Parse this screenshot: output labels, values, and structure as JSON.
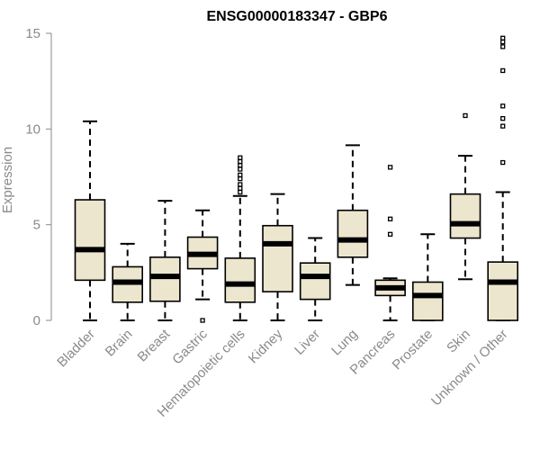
{
  "chart_data": {
    "type": "boxplot",
    "title": "ENSG00000183347 - GBP6",
    "ylabel": "Expression",
    "xlabel": "",
    "ylim": [
      0,
      15
    ],
    "yticks": [
      0,
      5,
      10,
      15
    ],
    "grid": false,
    "colors": {
      "box_fill": "#ede6cf",
      "stroke": "#000000",
      "axis_text": "#8a8a8a"
    },
    "categories": [
      "Bladder",
      "Brain",
      "Breast",
      "Gastric",
      "Hematopoietic cells",
      "Kidney",
      "Liver",
      "Lung",
      "Pancreas",
      "Prostate",
      "Skin",
      "Unknown / Other"
    ],
    "boxes": [
      {
        "whisker_low": 0.0,
        "q1": 2.1,
        "median": 3.7,
        "q3": 6.3,
        "whisker_high": 10.4,
        "outliers": []
      },
      {
        "whisker_low": 0.0,
        "q1": 0.95,
        "median": 2.0,
        "q3": 2.8,
        "whisker_high": 4.0,
        "outliers": []
      },
      {
        "whisker_low": 0.0,
        "q1": 1.0,
        "median": 2.3,
        "q3": 3.3,
        "whisker_high": 6.25,
        "outliers": []
      },
      {
        "whisker_low": 1.1,
        "q1": 2.7,
        "median": 3.45,
        "q3": 4.35,
        "whisker_high": 5.75,
        "outliers": [
          0.0
        ]
      },
      {
        "whisker_low": 0.0,
        "q1": 0.95,
        "median": 1.9,
        "q3": 3.25,
        "whisker_high": 6.5,
        "outliers": [
          6.7,
          6.9,
          7.1,
          7.4,
          7.6,
          7.9,
          8.1,
          8.3,
          8.5
        ]
      },
      {
        "whisker_low": 0.0,
        "q1": 1.5,
        "median": 4.0,
        "q3": 4.95,
        "whisker_high": 6.6,
        "outliers": []
      },
      {
        "whisker_low": 0.0,
        "q1": 1.1,
        "median": 2.3,
        "q3": 3.0,
        "whisker_high": 4.3,
        "outliers": []
      },
      {
        "whisker_low": 1.85,
        "q1": 3.3,
        "median": 4.2,
        "q3": 5.75,
        "whisker_high": 9.15,
        "outliers": []
      },
      {
        "whisker_low": 0.0,
        "q1": 1.3,
        "median": 1.7,
        "q3": 2.1,
        "whisker_high": 2.2,
        "outliers": [
          4.5,
          5.3,
          8.0
        ]
      },
      {
        "whisker_low": 0.0,
        "q1": 0.0,
        "median": 1.3,
        "q3": 2.0,
        "whisker_high": 4.5,
        "outliers": []
      },
      {
        "whisker_low": 2.15,
        "q1": 4.3,
        "median": 5.05,
        "q3": 6.6,
        "whisker_high": 8.6,
        "outliers": [
          10.7
        ]
      },
      {
        "whisker_low": 0.0,
        "q1": 0.0,
        "median": 2.0,
        "q3": 3.05,
        "whisker_high": 6.7,
        "outliers": [
          8.25,
          10.15,
          10.55,
          11.2,
          13.05,
          14.3,
          14.55,
          14.75
        ]
      }
    ]
  }
}
